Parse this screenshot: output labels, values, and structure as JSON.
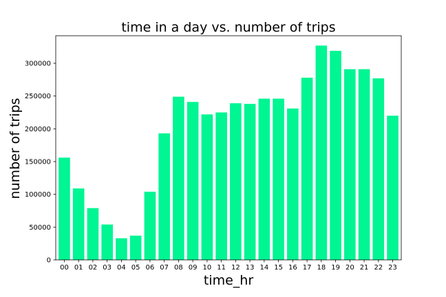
{
  "chart_data": {
    "type": "bar",
    "title": "time in a day vs. number of trips",
    "xlabel": "time_hr",
    "ylabel": "number of trips",
    "categories": [
      "00",
      "01",
      "02",
      "03",
      "04",
      "05",
      "06",
      "07",
      "08",
      "09",
      "10",
      "11",
      "12",
      "13",
      "14",
      "15",
      "16",
      "17",
      "18",
      "19",
      "20",
      "21",
      "22",
      "23"
    ],
    "values": [
      156000,
      109000,
      79000,
      54000,
      33000,
      37000,
      104000,
      193000,
      249000,
      241000,
      222000,
      225000,
      239000,
      238000,
      246000,
      246000,
      231000,
      278000,
      327000,
      319000,
      291000,
      291000,
      277000,
      220000
    ],
    "ylim": [
      0,
      342000
    ],
    "yticks": [
      0,
      50000,
      100000,
      150000,
      200000,
      250000,
      300000
    ],
    "ytick_labels": [
      "0",
      "50000",
      "100000",
      "150000",
      "200000",
      "250000",
      "300000"
    ],
    "bar_color": "#00f593",
    "grid": false,
    "legend": "none"
  }
}
